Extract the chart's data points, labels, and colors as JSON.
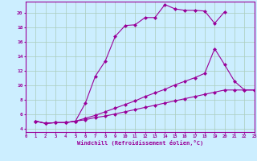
{
  "xlabel": "Windchill (Refroidissement éolien,°C)",
  "bg_color": "#cceeff",
  "line_color": "#990099",
  "grid_color": "#aaccbb",
  "xlim": [
    0,
    23
  ],
  "ylim": [
    3.5,
    21.5
  ],
  "xticks": [
    0,
    1,
    2,
    3,
    4,
    5,
    6,
    7,
    8,
    9,
    10,
    11,
    12,
    13,
    14,
    15,
    16,
    17,
    18,
    19,
    20,
    21,
    22,
    23
  ],
  "yticks": [
    4,
    6,
    8,
    10,
    12,
    14,
    16,
    18,
    20
  ],
  "line1_x": [
    1,
    2,
    3,
    4,
    5,
    6,
    7,
    8,
    9,
    10,
    11,
    12,
    13,
    14,
    15,
    16,
    17,
    18,
    19,
    20
  ],
  "line1_y": [
    5.0,
    4.7,
    4.8,
    4.8,
    5.0,
    7.5,
    11.2,
    13.3,
    16.7,
    18.2,
    18.3,
    19.3,
    19.3,
    21.1,
    20.5,
    20.3,
    20.3,
    20.2,
    18.5,
    20.1
  ],
  "line2_x": [
    1,
    2,
    3,
    4,
    5,
    6,
    7,
    8,
    9,
    10,
    11,
    12,
    13,
    14,
    15,
    16,
    17,
    18,
    19,
    20,
    21,
    22,
    23
  ],
  "line2_y": [
    5.0,
    4.7,
    4.8,
    4.8,
    5.0,
    5.4,
    5.8,
    6.3,
    6.8,
    7.3,
    7.8,
    8.4,
    8.9,
    9.4,
    10.0,
    10.5,
    11.0,
    11.6,
    15.0,
    12.8,
    10.5,
    9.3,
    9.3
  ],
  "line3_x": [
    1,
    2,
    3,
    4,
    5,
    6,
    7,
    8,
    9,
    10,
    11,
    12,
    13,
    14,
    15,
    16,
    17,
    18,
    19,
    20,
    21,
    22,
    23
  ],
  "line3_y": [
    5.0,
    4.7,
    4.8,
    4.8,
    5.0,
    5.2,
    5.5,
    5.7,
    6.0,
    6.3,
    6.6,
    6.9,
    7.2,
    7.5,
    7.8,
    8.1,
    8.4,
    8.7,
    9.0,
    9.3,
    9.3,
    9.3,
    9.3
  ]
}
